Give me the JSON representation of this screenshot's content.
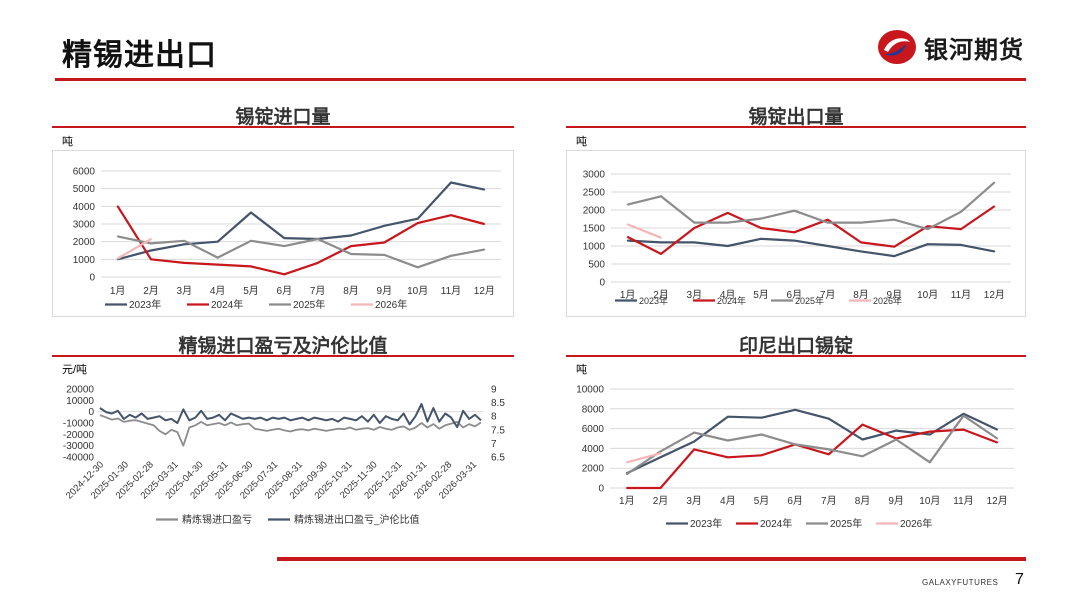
{
  "header": {
    "title": "精锡进出口",
    "brand": "银河期货"
  },
  "footer": {
    "brand": "GALAXYFUTURES",
    "page": "7"
  },
  "colors": {
    "accent": "#c8161d",
    "s2023": "#44546a",
    "s2024": "#c8161d",
    "s2025": "#8c8c8c",
    "s2026": "#f4b6b8"
  },
  "panels": [
    {
      "title": "锡锭进口量",
      "unit": "吨"
    },
    {
      "title": "锡锭出口量",
      "unit": "吨"
    },
    {
      "title": "精锡进口盈亏及沪伦比值",
      "unit": "元/吨"
    },
    {
      "title": "印尼出口锡锭",
      "unit": "吨"
    }
  ],
  "chart_data": [
    {
      "type": "line",
      "title": "锡锭进口量",
      "categories": [
        "1月",
        "2月",
        "3月",
        "4月",
        "5月",
        "6月",
        "7月",
        "8月",
        "9月",
        "10月",
        "11月",
        "12月"
      ],
      "ylim": [
        0,
        6000
      ],
      "yticks": [
        "0",
        "1000",
        "2000",
        "3000",
        "4000",
        "5000",
        "6000"
      ],
      "series": [
        {
          "name": "2023年",
          "values": [
            1000,
            1500,
            1850,
            2000,
            3650,
            2200,
            2150,
            2350,
            2900,
            3300,
            5350,
            4950
          ]
        },
        {
          "name": "2024年",
          "values": [
            4000,
            1000,
            800,
            700,
            600,
            150,
            800,
            1750,
            1950,
            3050,
            3500,
            3000
          ]
        },
        {
          "name": "2025年",
          "values": [
            2300,
            1900,
            2050,
            1100,
            2050,
            1750,
            2150,
            1300,
            1250,
            550,
            1200,
            1550
          ]
        },
        {
          "name": "2026年",
          "values": [
            1050,
            2150,
            null,
            null,
            null,
            null,
            null,
            null,
            null,
            null,
            null,
            null
          ]
        }
      ]
    },
    {
      "type": "line",
      "title": "锡锭出口量",
      "categories": [
        "1月",
        "2月",
        "3月",
        "4月",
        "5月",
        "6月",
        "7月",
        "8月",
        "9月",
        "10月",
        "11月",
        "12月"
      ],
      "ylim": [
        0,
        3000
      ],
      "yticks": [
        "0",
        "500",
        "1000",
        "1500",
        "2000",
        "2500",
        "3000"
      ],
      "series": [
        {
          "name": "2023年",
          "values": [
            1150,
            1100,
            1100,
            1000,
            1200,
            1150,
            1000,
            850,
            720,
            1050,
            1030,
            850
          ]
        },
        {
          "name": "2024年",
          "values": [
            1250,
            780,
            1500,
            1920,
            1500,
            1380,
            1730,
            1100,
            980,
            1550,
            1470,
            2100
          ]
        },
        {
          "name": "2025年",
          "values": [
            2150,
            2380,
            1650,
            1650,
            1760,
            1980,
            1650,
            1650,
            1730,
            1470,
            1950,
            2760
          ]
        },
        {
          "name": "2026年",
          "values": [
            1600,
            1230,
            null,
            null,
            null,
            null,
            null,
            null,
            null,
            null,
            null,
            null
          ]
        }
      ]
    },
    {
      "type": "line",
      "title": "精锡进口盈亏及沪伦比值",
      "ylim": [
        -40000,
        20000
      ],
      "yticks": [
        "20000",
        "10000",
        "0",
        "-10000",
        "-20000",
        "-30000",
        "-40000"
      ],
      "y2lim": [
        6.5,
        9
      ],
      "y2ticks": [
        "9",
        "8.5",
        "8",
        "7.5",
        "7",
        "6.5"
      ],
      "xticks": [
        "2024-12-30",
        "2025-01-30",
        "2025-02-28",
        "2025-03-31",
        "2025-04-30",
        "2025-05-31",
        "2025-06-30",
        "2025-07-31",
        "2025-08-31",
        "2025-09-30",
        "2025-10-31",
        "2025-11-30",
        "2025-12-31",
        "2026-01-31",
        "2026-02-28",
        "2026-03-31"
      ],
      "series": [
        {
          "name": "精炼锡进口盈亏",
          "axis": "left",
          "values": [
            -3000,
            -5000,
            -7000,
            -6000,
            -9000,
            -8000,
            -7500,
            -9000,
            -10500,
            -12000,
            -17000,
            -20000,
            -16000,
            -18000,
            -30000,
            -14000,
            -12000,
            -9000,
            -12000,
            -11000,
            -10000,
            -12000,
            -9500,
            -12000,
            -11000,
            -10500,
            -15000,
            -16000,
            -17000,
            -16000,
            -15000,
            -16500,
            -17500,
            -16000,
            -15500,
            -16500,
            -15000,
            -16000,
            -17000,
            -16000,
            -15000,
            -15500,
            -14000,
            -16000,
            -15000,
            -14500,
            -16000,
            -13500,
            -15000,
            -16000,
            -14000,
            -13000,
            -16000,
            -14000,
            -10000,
            -14000,
            -11000,
            -15000,
            -12000,
            -10500,
            -9000,
            -14000,
            -11000,
            -13000,
            -9500
          ]
        },
        {
          "name": "精炼锡进出口盈亏_沪伦比值",
          "axis": "right",
          "values": [
            8.3,
            8.15,
            8.1,
            8.2,
            7.9,
            8.05,
            7.95,
            8.1,
            7.9,
            7.95,
            8.0,
            7.85,
            7.9,
            7.75,
            8.25,
            7.85,
            7.95,
            8.2,
            7.9,
            7.95,
            8.05,
            7.85,
            8.1,
            8.0,
            7.9,
            7.95,
            7.9,
            7.95,
            7.85,
            7.95,
            7.9,
            7.95,
            7.85,
            7.9,
            7.95,
            7.85,
            7.95,
            7.9,
            7.85,
            7.9,
            7.8,
            7.95,
            7.9,
            7.85,
            8.0,
            7.8,
            8.05,
            7.75,
            8.0,
            7.9,
            7.85,
            8.1,
            7.7,
            8.0,
            8.45,
            7.8,
            8.3,
            7.8,
            8.1,
            7.95,
            7.6,
            8.2,
            7.9,
            8.05,
            7.85
          ]
        }
      ]
    },
    {
      "type": "line",
      "title": "印尼出口锡锭",
      "categories": [
        "1月",
        "2月",
        "3月",
        "4月",
        "5月",
        "6月",
        "7月",
        "8月",
        "9月",
        "10月",
        "11月",
        "12月"
      ],
      "ylim": [
        0,
        10000
      ],
      "yticks": [
        "0",
        "2000",
        "4000",
        "6000",
        "8000",
        "10000"
      ],
      "series": [
        {
          "name": "2023年",
          "values": [
            1500,
            3100,
            4700,
            7200,
            7100,
            7900,
            7000,
            4900,
            5800,
            5400,
            7500,
            5900
          ]
        },
        {
          "name": "2024年",
          "values": [
            0,
            0,
            3900,
            3100,
            3300,
            4400,
            3400,
            6400,
            5000,
            5700,
            5900,
            4600
          ]
        },
        {
          "name": "2025年",
          "values": [
            1400,
            3700,
            5600,
            4800,
            5400,
            4400,
            3900,
            3200,
            4900,
            2600,
            7300,
            5000
          ]
        },
        {
          "name": "2026年",
          "values": [
            2600,
            3500,
            null,
            null,
            null,
            null,
            null,
            null,
            null,
            null,
            null,
            null
          ]
        }
      ]
    }
  ]
}
